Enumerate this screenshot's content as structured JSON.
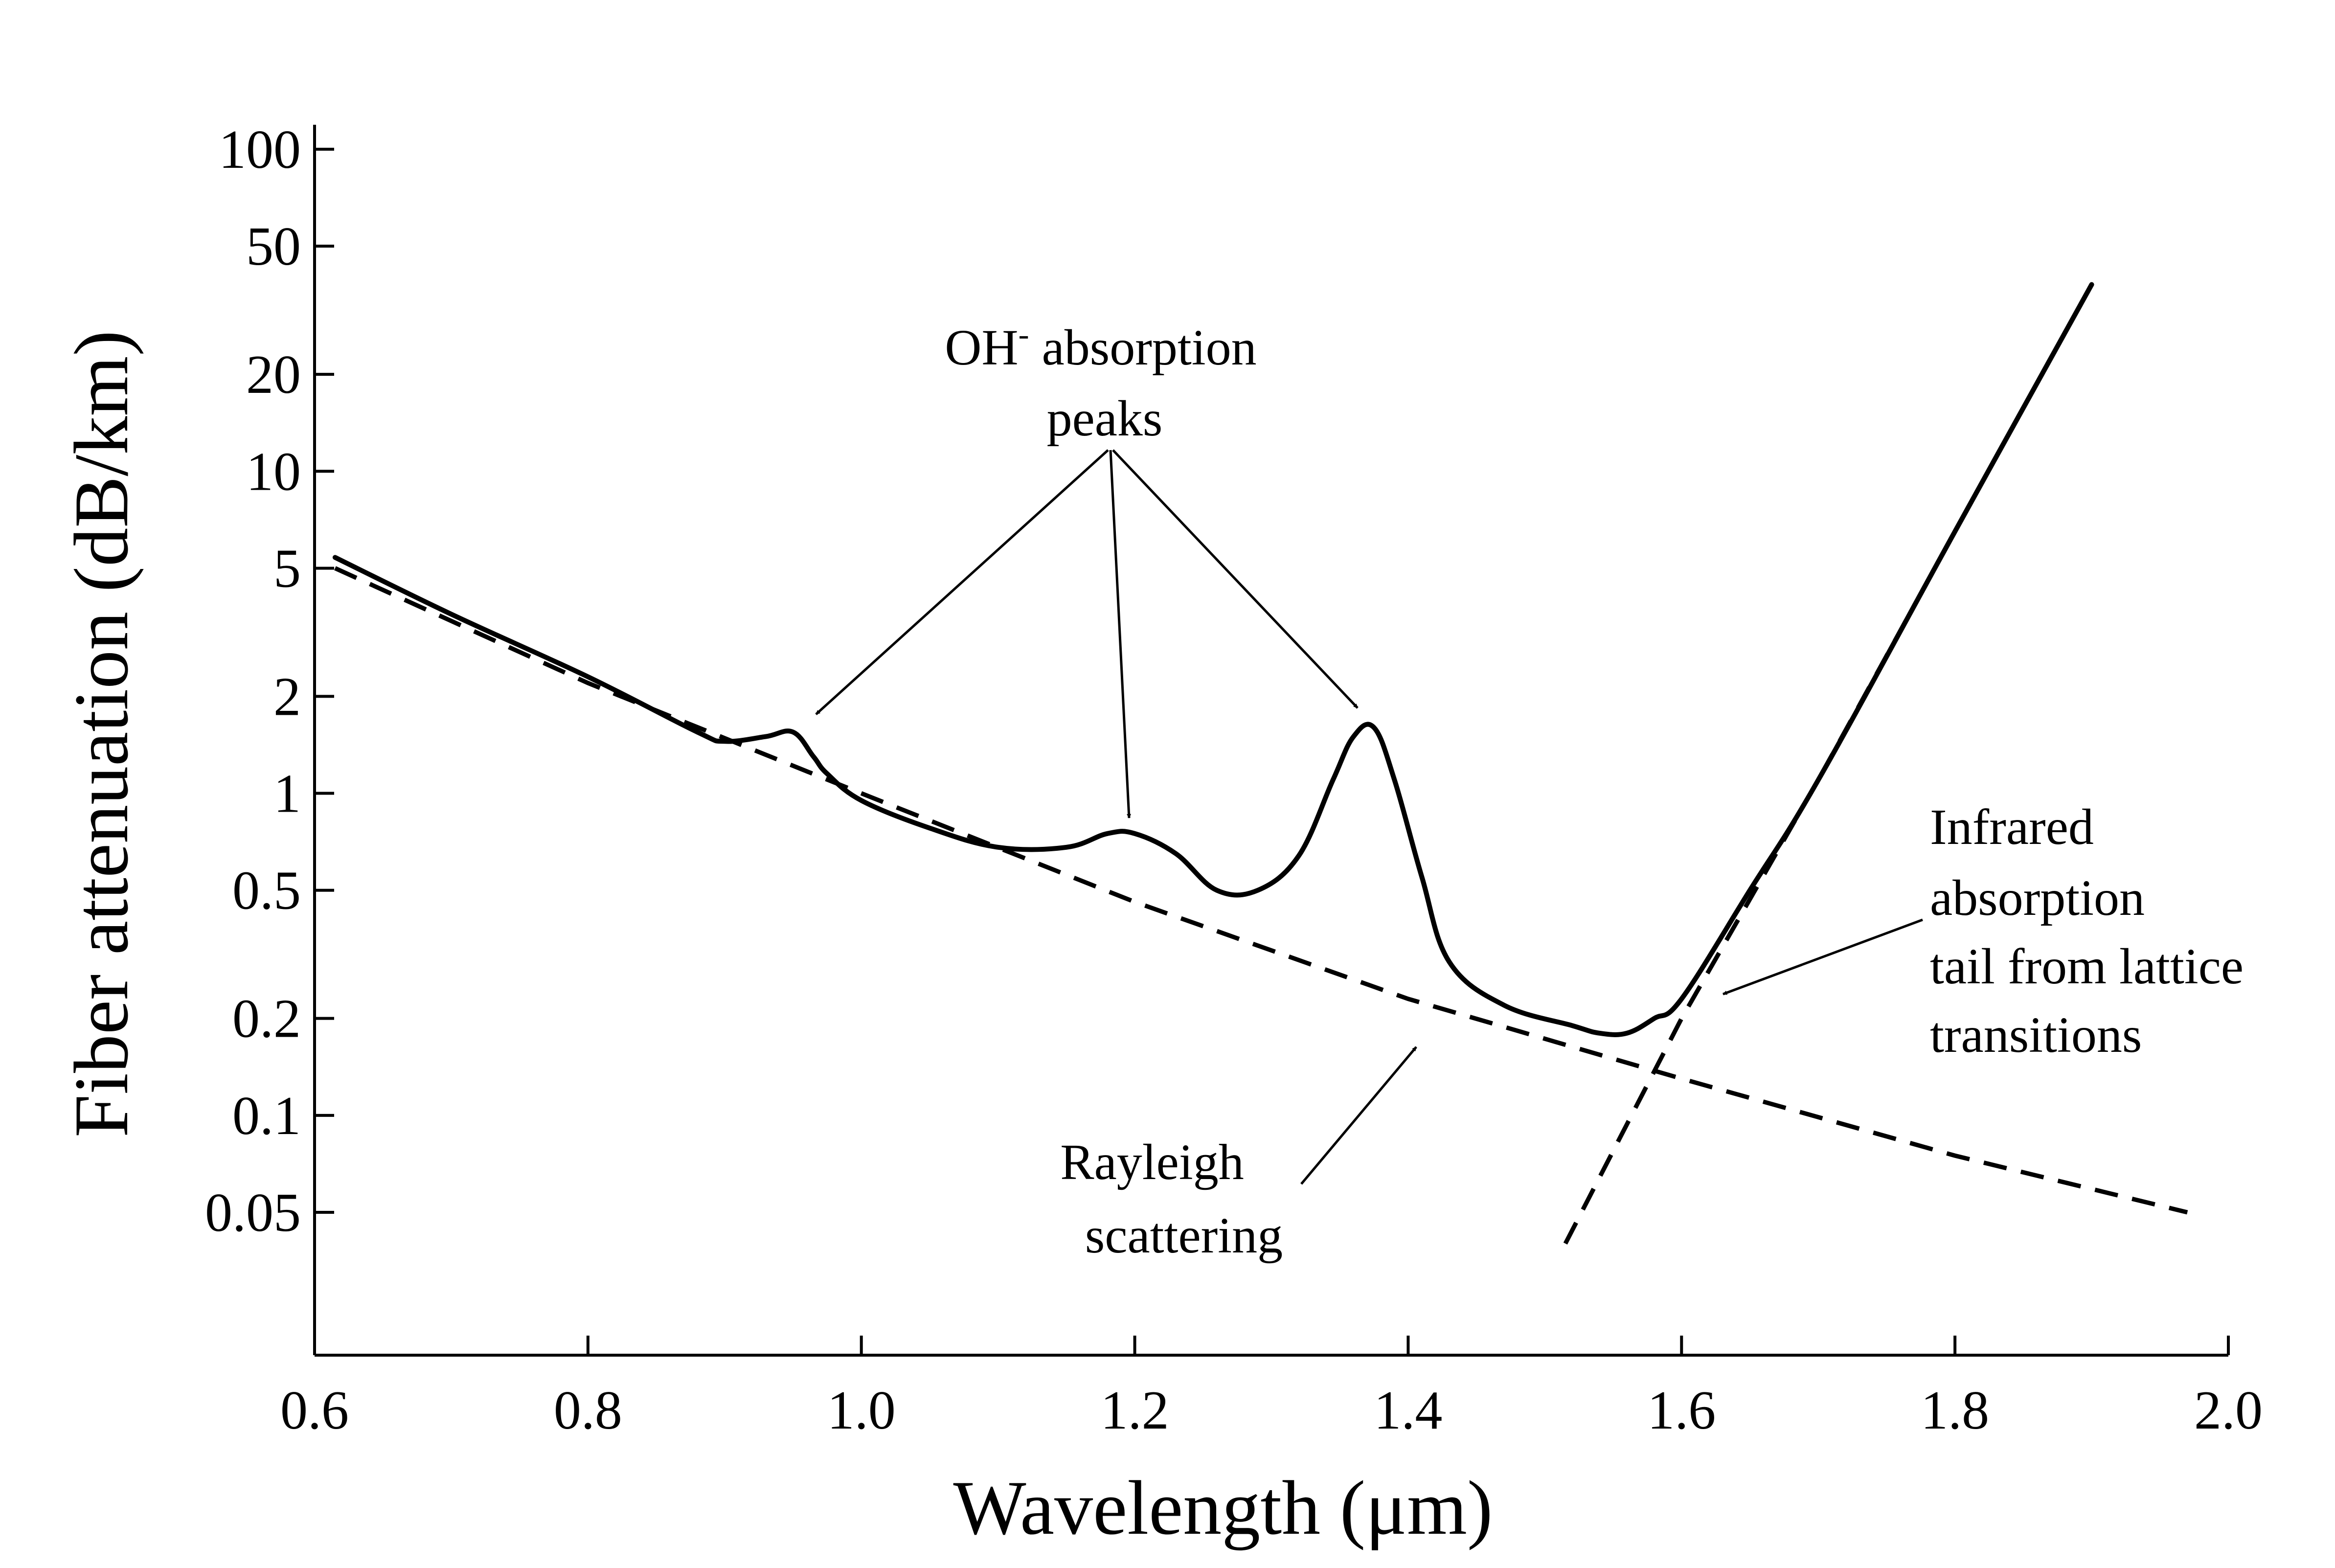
{
  "chart_data": {
    "type": "line",
    "title": "",
    "xlabel": "Wavelength (μm)",
    "ylabel": "Fiber attenuation (dB/km)",
    "x_scale": "linear",
    "y_scale": "log",
    "xlim": [
      0.6,
      2.0
    ],
    "ylim": [
      0.02,
      100
    ],
    "grid": false,
    "x_ticks": [
      0.6,
      0.8,
      1.0,
      1.2,
      1.4,
      1.6,
      1.8,
      2.0
    ],
    "x_tick_labels": [
      "0.6",
      "0.8",
      "1.0",
      "1.2",
      "1.4",
      "1.6",
      "1.8",
      "2.0"
    ],
    "y_ticks": [
      100,
      50,
      20,
      10,
      5,
      2,
      1,
      0.5,
      0.2,
      0.1,
      0.05
    ],
    "y_tick_labels": [
      "100",
      "50",
      "20",
      "10",
      "5",
      "2",
      "1",
      "0.5",
      "0.2",
      "0.1",
      "0.05"
    ],
    "series": [
      {
        "style": "solid",
        "x": [
          0.615,
          0.7,
          0.8,
          0.88,
          0.9,
          0.93,
          0.95,
          0.965,
          0.975,
          1.0,
          1.05,
          1.1,
          1.15,
          1.18,
          1.2,
          1.23,
          1.26,
          1.29,
          1.32,
          1.345,
          1.36,
          1.375,
          1.39,
          1.41,
          1.43,
          1.47,
          1.52,
          1.54,
          1.56,
          1.58,
          1.6,
          1.65,
          1.7,
          1.8,
          1.9
        ],
        "y": [
          5.4,
          3.6,
          2.3,
          1.55,
          1.45,
          1.5,
          1.55,
          1.3,
          1.15,
          0.95,
          0.78,
          0.68,
          0.68,
          0.75,
          0.75,
          0.65,
          0.5,
          0.5,
          0.64,
          1.1,
          1.5,
          1.6,
          1.1,
          0.55,
          0.3,
          0.22,
          0.19,
          0.18,
          0.18,
          0.2,
          0.23,
          0.5,
          1.1,
          6.5,
          38
        ]
      },
      {
        "name": "Rayleigh scattering",
        "style": "dashed",
        "x": [
          0.615,
          0.8,
          1.0,
          1.2,
          1.4,
          1.6,
          1.8,
          1.97
        ],
        "y": [
          5.0,
          2.2,
          1.0,
          0.46,
          0.23,
          0.13,
          0.075,
          0.05
        ]
      },
      {
        "name": "Infrared absorption tail from lattice transitions",
        "style": "dashed",
        "x": [
          1.515,
          1.6,
          1.7,
          1.8,
          1.9
        ],
        "y": [
          0.04,
          0.2,
          1.1,
          6.5,
          38
        ]
      }
    ],
    "annotations": [
      {
        "lines": [
          "OH",
          "-",
          " absorption"
        ],
        "line2": "peaks"
      },
      {
        "lines": [
          "Rayleigh",
          "scattering"
        ]
      },
      {
        "lines": [
          "Infrared",
          "absorption",
          "tail from lattice",
          "transitions"
        ]
      }
    ]
  }
}
